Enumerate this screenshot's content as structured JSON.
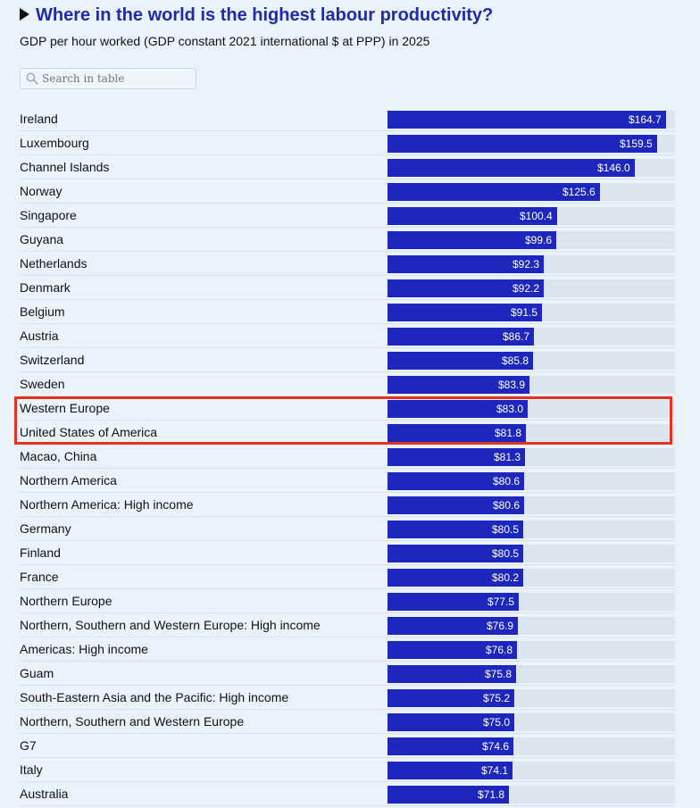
{
  "title": "Where in the world is the highest labour productivity?",
  "subtitle": "GDP per hour worked (GDP constant 2021 international $ at PPP) in 2025",
  "search": {
    "placeholder": "Search in table"
  },
  "colors": {
    "bar": "#1e27bd",
    "track": "#dbe5ee",
    "title": "#1f2ba8",
    "highlight": "#e23222",
    "background": "#eaf3fc"
  },
  "chart_data": {
    "type": "bar",
    "orientation": "horizontal",
    "title": "Where in the world is the highest labour productivity?",
    "subtitle": "GDP per hour worked (GDP constant 2021 international $ at PPP) in 2025",
    "xlim": [
      0,
      170
    ],
    "value_prefix": "$",
    "highlighted": [
      "Western Europe",
      "United States of America"
    ],
    "categories": [
      "Ireland",
      "Luxembourg",
      "Channel Islands",
      "Norway",
      "Singapore",
      "Guyana",
      "Netherlands",
      "Denmark",
      "Belgium",
      "Austria",
      "Switzerland",
      "Sweden",
      "Western Europe",
      "United States of America",
      "Macao, China",
      "Northern America",
      "Northern America: High income",
      "Germany",
      "Finland",
      "France",
      "Northern Europe",
      "Northern, Southern and Western Europe: High income",
      "Americas: High income",
      "Guam",
      "South-Eastern Asia and the Pacific: High income",
      "Northern, Southern and Western Europe",
      "G7",
      "Italy",
      "Australia"
    ],
    "values": [
      164.7,
      159.5,
      146.0,
      125.6,
      100.4,
      99.6,
      92.3,
      92.2,
      91.5,
      86.7,
      85.8,
      83.9,
      83.0,
      81.8,
      81.3,
      80.6,
      80.6,
      80.5,
      80.5,
      80.2,
      77.5,
      76.9,
      76.8,
      75.8,
      75.2,
      75.0,
      74.6,
      74.1,
      71.8
    ],
    "value_labels": [
      "$164.7",
      "$159.5",
      "$146.0",
      "$125.6",
      "$100.4",
      "$99.6",
      "$92.3",
      "$92.2",
      "$91.5",
      "$86.7",
      "$85.8",
      "$83.9",
      "$83.0",
      "$81.8",
      "$81.3",
      "$80.6",
      "$80.6",
      "$80.5",
      "$80.5",
      "$80.2",
      "$77.5",
      "$76.9",
      "$76.8",
      "$75.8",
      "$75.2",
      "$75.0",
      "$74.6",
      "$74.1",
      "$71.8"
    ]
  }
}
